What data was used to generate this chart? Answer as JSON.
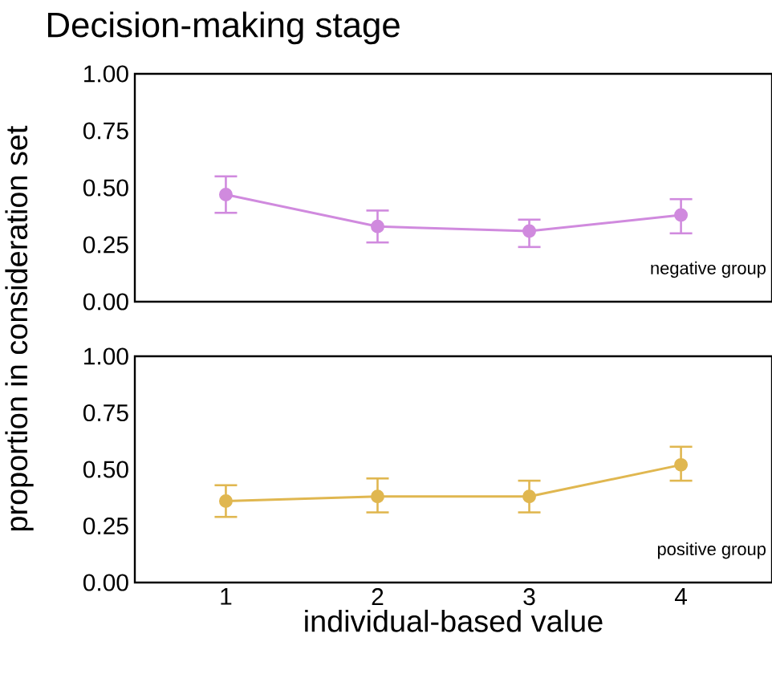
{
  "chart_data": [
    {
      "type": "line",
      "title": "Decision-making stage",
      "ylabel": "proportion in consideration set",
      "x": [
        1,
        2,
        3,
        4
      ],
      "xlim": [
        0.4,
        4.6
      ],
      "xticks": [
        1,
        2,
        3,
        4
      ],
      "ylim": [
        0,
        1
      ],
      "yticks": [
        {
          "value": 0,
          "label": "0.00"
        },
        {
          "value": 0.25,
          "label": "0.25"
        },
        {
          "value": 0.5,
          "label": "0.50"
        },
        {
          "value": 0.75,
          "label": "0.75"
        },
        {
          "value": 1,
          "label": "1.00"
        }
      ],
      "tick_labels": "y",
      "marker": "circle",
      "series": [
        {
          "color": "#d08ade",
          "values": [
            0.47,
            0.33,
            0.31,
            0.38
          ],
          "errors": [
            [
              0.39,
              0.55
            ],
            [
              0.26,
              0.4
            ],
            [
              0.24,
              0.36
            ],
            [
              0.3,
              0.45
            ]
          ]
        }
      ],
      "annotations": [
        "negative group"
      ]
    },
    {
      "type": "line",
      "xlabel": "individual-based value",
      "x": [
        1,
        2,
        3,
        4
      ],
      "xlim": [
        0.4,
        4.6
      ],
      "xticks": [
        1,
        2,
        3,
        4
      ],
      "ylim": [
        0,
        1
      ],
      "yticks": [
        {
          "value": 0,
          "label": "0.00"
        },
        {
          "value": 0.25,
          "label": "0.25"
        },
        {
          "value": 0.5,
          "label": "0.50"
        },
        {
          "value": 0.75,
          "label": "0.75"
        },
        {
          "value": 1,
          "label": "1.00"
        }
      ],
      "marker": "circle",
      "series": [
        {
          "color": "#e0b750",
          "values": [
            0.36,
            0.38,
            0.38,
            0.52
          ],
          "errors": [
            [
              0.29,
              0.43
            ],
            [
              0.31,
              0.46
            ],
            [
              0.31,
              0.45
            ],
            [
              0.45,
              0.6
            ]
          ]
        }
      ],
      "annotations": [
        "positive group"
      ]
    }
  ]
}
